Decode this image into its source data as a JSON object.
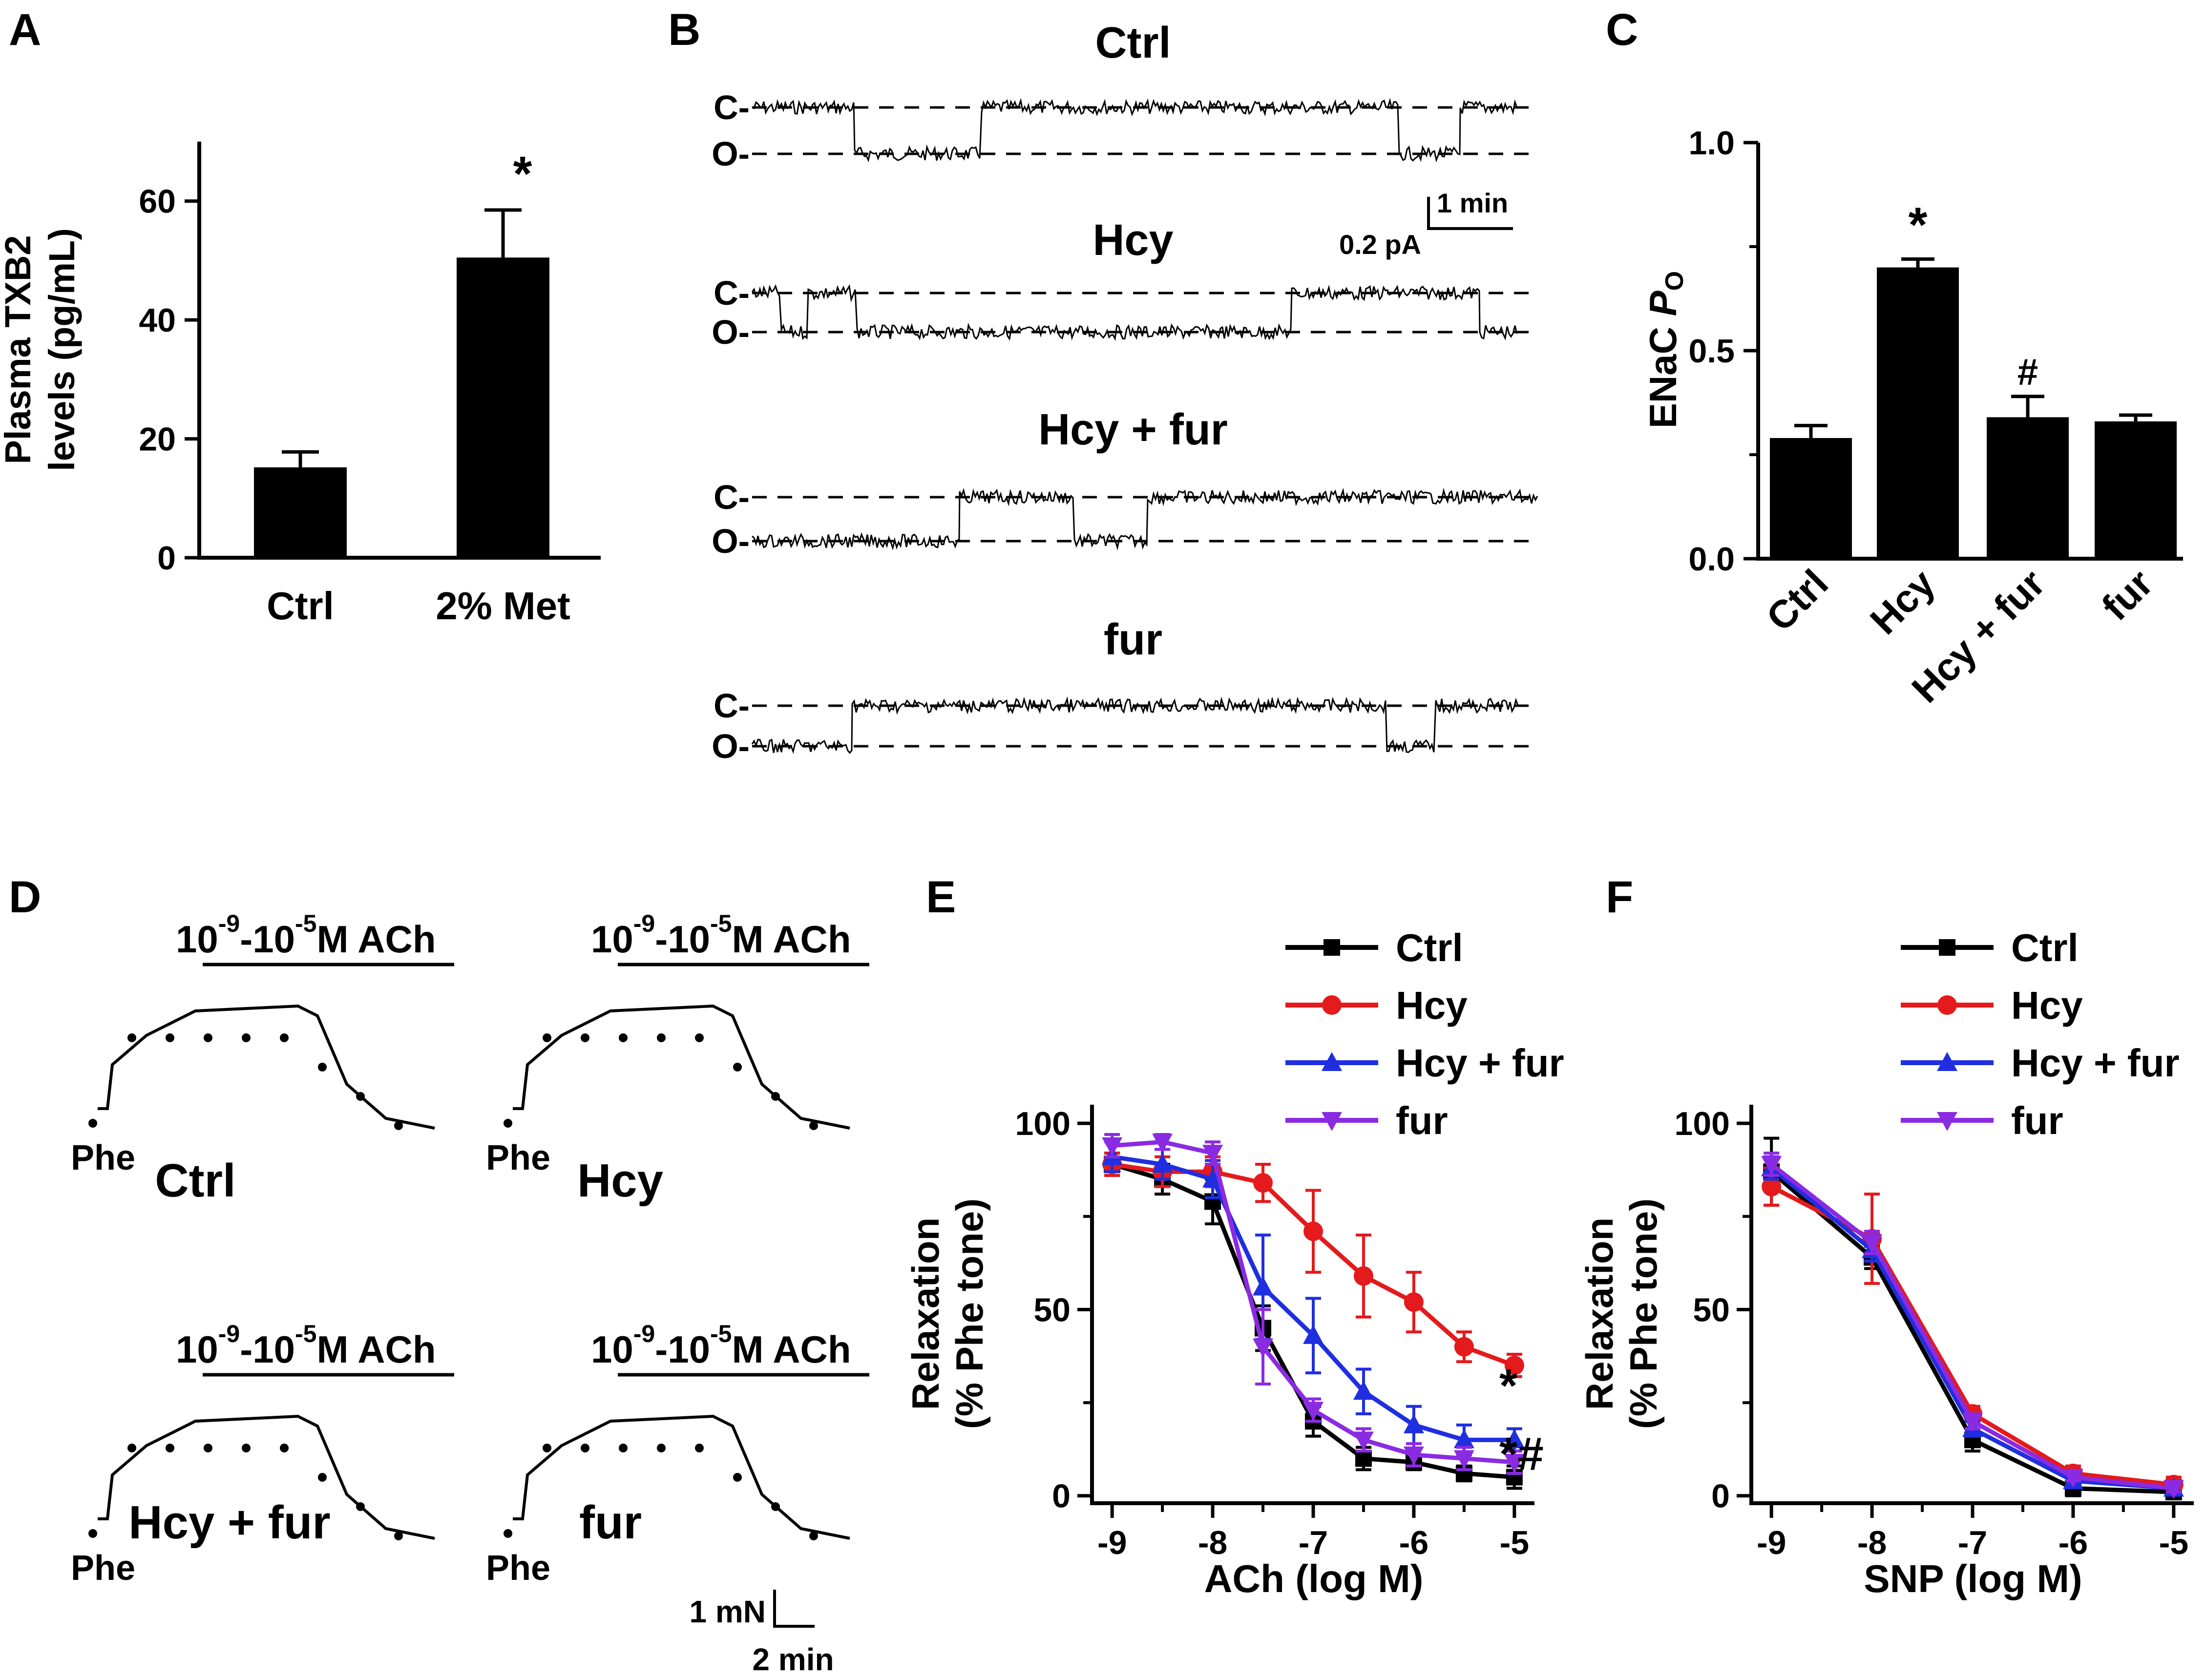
{
  "colors": {
    "ctrl": "#000000",
    "hcy": "#e41a1c",
    "hcy_fur": "#1f2fe0",
    "fur": "#8a2be2"
  },
  "panels": {
    "A": {
      "letter": "A"
    },
    "B": {
      "letter": "B",
      "closed_label": "C-",
      "open_label": "O-",
      "scale_time": "1 min",
      "scale_current": "0.2 pA",
      "traces": [
        {
          "title": "Ctrl"
        },
        {
          "title": "Hcy"
        },
        {
          "title": "Hcy + fur"
        },
        {
          "title": "fur"
        }
      ]
    },
    "C": {
      "letter": "C"
    },
    "D": {
      "letter": "D",
      "ach_exp1": "-9",
      "ach_exp2": "-5",
      "ach_prefix": "10",
      "ach_mid": "-10",
      "ach_suffix": "M ACh",
      "phe_label": "Phe",
      "scale_force": "1 mN",
      "scale_time": "2 min",
      "traces": [
        {
          "title": "Ctrl"
        },
        {
          "title": "Hcy"
        },
        {
          "title": "Hcy + fur"
        },
        {
          "title": "fur"
        }
      ]
    },
    "E": {
      "letter": "E"
    },
    "F": {
      "letter": "F"
    }
  },
  "chart_data": [
    {
      "panel": "A",
      "type": "bar",
      "categories": [
        "Ctrl",
        "2% Met"
      ],
      "values": [
        15.2,
        50.5
      ],
      "errors": [
        2.6,
        8.0
      ],
      "significance": [
        "",
        "*"
      ],
      "ylabel_line1": "Plasma TXB2",
      "ylabel_line2": "levels (pg/mL)",
      "ylim": [
        0,
        70
      ],
      "yticks": [
        0,
        20,
        40,
        60
      ]
    },
    {
      "panel": "C",
      "type": "bar",
      "categories": [
        "Ctrl",
        "Hcy",
        "Hcy + fur",
        "fur"
      ],
      "values": [
        0.29,
        0.7,
        0.34,
        0.33
      ],
      "errors": [
        0.03,
        0.02,
        0.05,
        0.015
      ],
      "significance": [
        "",
        "*",
        "#",
        ""
      ],
      "ylabel_main": "ENaC ",
      "ylabel_italic": "P",
      "ylabel_sub": "O",
      "ylim": [
        0,
        1.0
      ],
      "yticks": [
        "0.0",
        "0.5",
        "1.0"
      ]
    },
    {
      "panel": "E",
      "type": "line",
      "x": [
        -9,
        -8.5,
        -8,
        -7.5,
        -7,
        -6.5,
        -6,
        -5.5,
        -5
      ],
      "xticks": [
        -9,
        -8,
        -7,
        -6,
        -5
      ],
      "xlim": [
        -9.2,
        -4.8
      ],
      "ylim": [
        -2,
        105
      ],
      "yticks": [
        0,
        50,
        100
      ],
      "xlabel": "ACh (log M)",
      "ylabel_line1": "Relaxation",
      "ylabel_line2": "(% Phe tone)",
      "series": [
        {
          "name": "Ctrl",
          "color": "#000000",
          "marker": "square",
          "values": [
            89,
            85,
            79,
            45,
            20,
            10,
            9,
            6,
            5
          ],
          "errors": [
            3,
            4,
            6,
            6,
            4,
            3,
            2,
            2,
            3
          ]
        },
        {
          "name": "Hcy",
          "color": "#e41a1c",
          "marker": "circle",
          "values": [
            89,
            87,
            87,
            84,
            71,
            59,
            52,
            40,
            35
          ],
          "errors": [
            3,
            4,
            4,
            5,
            11,
            11,
            8,
            4,
            3
          ]
        },
        {
          "name": "Hcy + fur",
          "color": "#1f2fe0",
          "marker": "triangle-up",
          "values": [
            91,
            89,
            85,
            56,
            43,
            28,
            19,
            15,
            15
          ],
          "errors": [
            4,
            4,
            5,
            14,
            10,
            6,
            5,
            4,
            3
          ]
        },
        {
          "name": "fur",
          "color": "#8a2be2",
          "marker": "triangle-down",
          "values": [
            94,
            95,
            92,
            40,
            23,
            15,
            11,
            10,
            9
          ],
          "errors": [
            3,
            2,
            3,
            10,
            3,
            3,
            3,
            3,
            3
          ]
        }
      ],
      "annotations": [
        "*",
        "*#"
      ]
    },
    {
      "panel": "F",
      "type": "line",
      "x": [
        -9,
        -8,
        -7,
        -6,
        -5
      ],
      "xticks": [
        -9,
        -8,
        -7,
        -6,
        -5
      ],
      "xlim": [
        -9.2,
        -4.8
      ],
      "ylim": [
        -2,
        105
      ],
      "yticks": [
        0,
        50,
        100
      ],
      "xlabel": "SNP (log M)",
      "ylabel_line1": "Relaxation",
      "ylabel_line2": "(% Phe tone)",
      "series": [
        {
          "name": "Ctrl",
          "color": "#000000",
          "marker": "square",
          "values": [
            87,
            64,
            15,
            2,
            1
          ],
          "errors": [
            9,
            3,
            3,
            2,
            1
          ]
        },
        {
          "name": "Hcy",
          "color": "#e41a1c",
          "marker": "circle",
          "values": [
            83,
            69,
            22,
            6,
            3
          ],
          "errors": [
            5,
            12,
            2,
            2,
            2
          ]
        },
        {
          "name": "Hcy + fur",
          "color": "#1f2fe0",
          "marker": "triangle-up",
          "values": [
            88,
            66,
            18,
            4,
            2
          ],
          "errors": [
            3,
            3,
            2,
            1,
            1
          ]
        },
        {
          "name": "fur",
          "color": "#8a2be2",
          "marker": "triangle-down",
          "values": [
            89,
            68,
            20,
            5,
            2
          ],
          "errors": [
            3,
            3,
            2,
            1,
            1
          ]
        }
      ]
    }
  ]
}
